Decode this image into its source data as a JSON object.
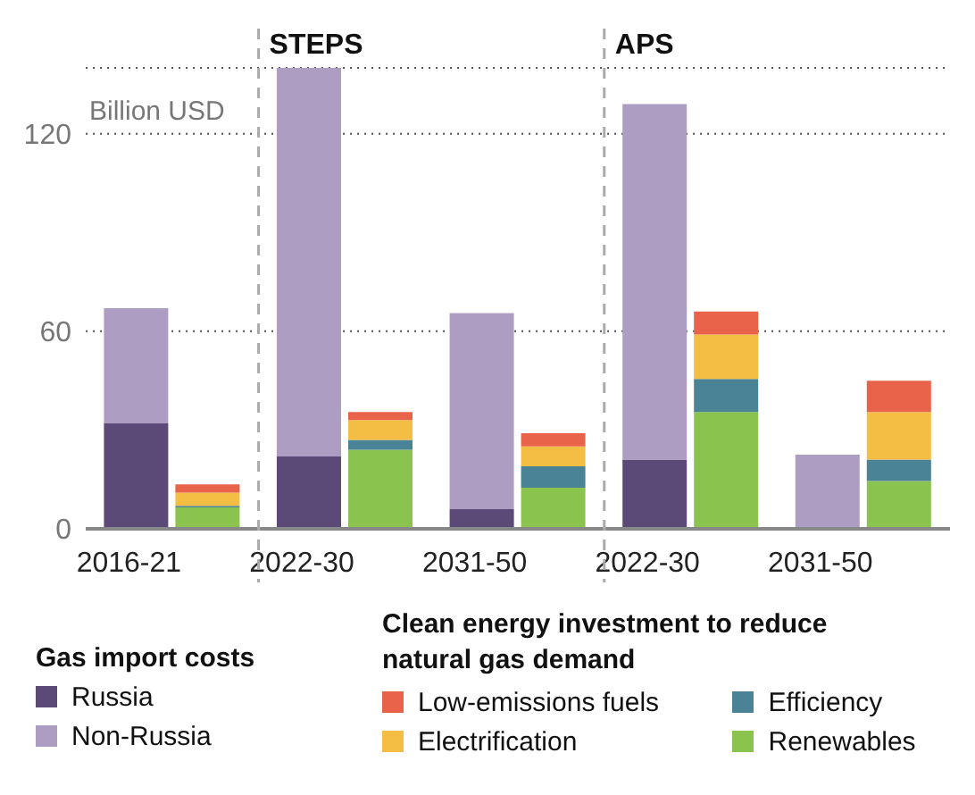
{
  "chart_data": {
    "type": "bar",
    "stacked": true,
    "ylabel": "Billion USD",
    "legend_title": "Gas import costs",
    "annotations": [
      "STEPS",
      "APS",
      "Clean energy investment to reduce natural gas demand"
    ],
    "categories": [
      "2016-21",
      null,
      "2022-30",
      null,
      "2031-50",
      null,
      "2022-30",
      null,
      "2031-50",
      null
    ],
    "series": [
      {
        "name": "Russia",
        "color": "#5b4a78",
        "values": [
          32,
          null,
          22,
          null,
          6,
          null,
          21,
          null,
          0,
          null
        ]
      },
      {
        "name": "Non-Russia",
        "color": "#ad9dc3",
        "values": [
          35,
          null,
          118,
          null,
          59.5,
          null,
          108,
          null,
          22.5,
          null
        ]
      },
      {
        "name": "Renewables",
        "color": "#8bc34f",
        "values": [
          null,
          6.5,
          null,
          24,
          null,
          12.5,
          null,
          35.5,
          null,
          14.5
        ]
      },
      {
        "name": "Efficiency",
        "color": "#4a8296",
        "values": [
          null,
          0.5,
          null,
          3,
          null,
          6.5,
          null,
          10,
          null,
          6.5
        ]
      },
      {
        "name": "Electrification",
        "color": "#f4bd43",
        "values": [
          null,
          4,
          null,
          6,
          null,
          6,
          null,
          13.5,
          null,
          14.5
        ]
      },
      {
        "name": "Low-emissions fuels",
        "color": "#e9634a",
        "values": [
          null,
          2.5,
          null,
          2.5,
          null,
          4,
          null,
          7,
          null,
          9.5
        ]
      }
    ],
    "ylim": [
      0,
      140
    ],
    "yticks": [
      0,
      60,
      120
    ],
    "grid": "y",
    "legend": "bottom"
  }
}
